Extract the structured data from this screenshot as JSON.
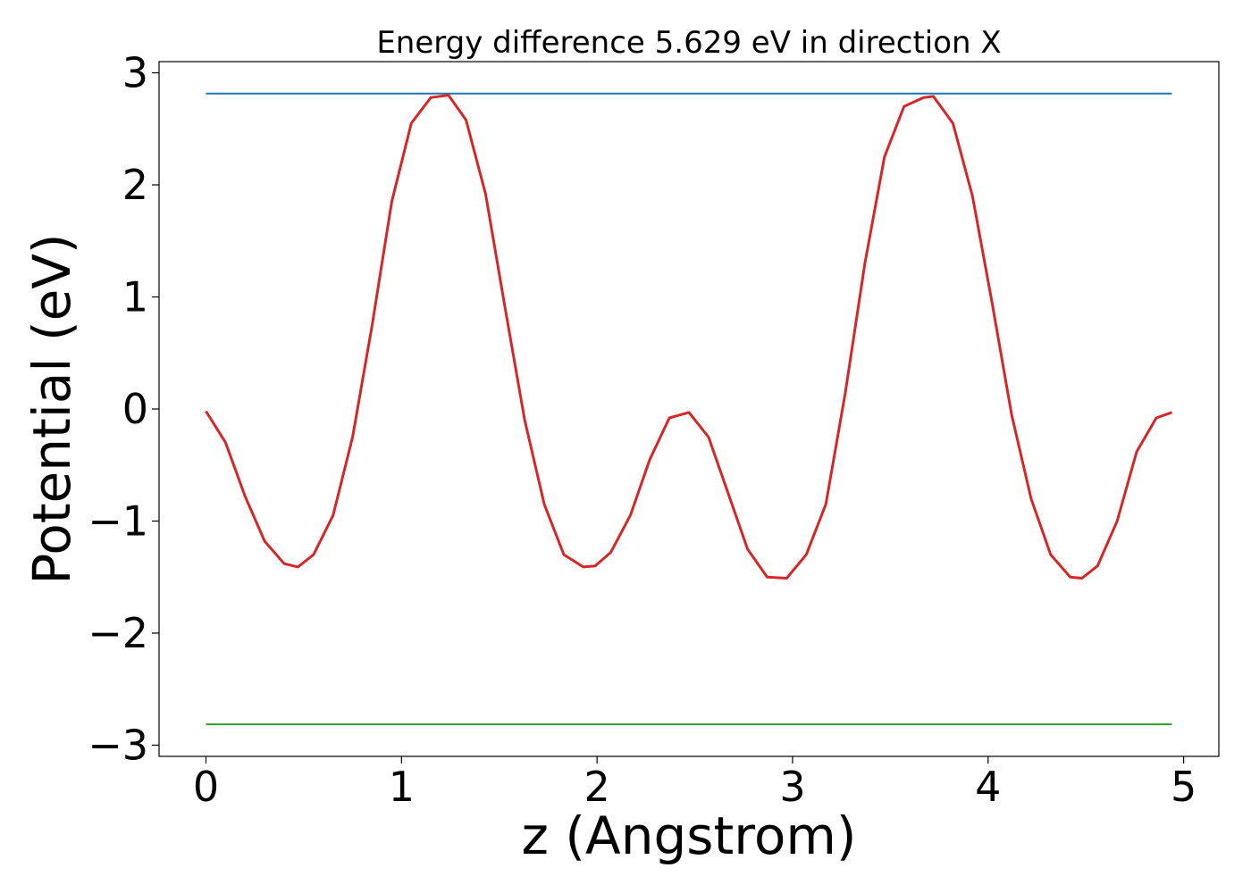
{
  "chart_data": {
    "type": "line",
    "title": "Energy difference 5.629 eV in direction X",
    "xlabel": "z (Angstrom)",
    "ylabel": "Potential (eV)",
    "xlim": [
      -0.24,
      5.18
    ],
    "ylim": [
      -3.1,
      3.1
    ],
    "x_ticks": [
      0,
      1,
      2,
      3,
      4,
      5
    ],
    "x_tick_labels": [
      "0",
      "1",
      "2",
      "3",
      "4",
      "5"
    ],
    "y_ticks": [
      -3,
      -2,
      -1,
      0,
      1,
      2,
      3
    ],
    "y_tick_labels": [
      "−3",
      "−2",
      "−1",
      "0",
      "1",
      "2",
      "3"
    ],
    "grid": false,
    "series": [
      {
        "color": "#1f77b4",
        "x": [
          0,
          4.94
        ],
        "y": [
          2.815,
          2.815
        ]
      },
      {
        "color": "#2ca02c",
        "x": [
          0,
          4.94
        ],
        "y": [
          -2.814,
          -2.814
        ]
      },
      {
        "color": "#d62728",
        "x": [
          0.0,
          0.1,
          0.2,
          0.3,
          0.4,
          0.47,
          0.55,
          0.65,
          0.75,
          0.85,
          0.95,
          1.05,
          1.15,
          1.24,
          1.33,
          1.43,
          1.53,
          1.63,
          1.73,
          1.83,
          1.93,
          1.99,
          2.07,
          2.17,
          2.27,
          2.37,
          2.47,
          2.57,
          2.67,
          2.77,
          2.87,
          2.97,
          3.07,
          3.17,
          3.27,
          3.37,
          3.47,
          3.57,
          3.67,
          3.72,
          3.82,
          3.92,
          4.02,
          4.12,
          4.22,
          4.32,
          4.42,
          4.48,
          4.56,
          4.66,
          4.76,
          4.86,
          4.94
        ],
        "y": [
          -0.02,
          -0.3,
          -0.78,
          -1.18,
          -1.38,
          -1.41,
          -1.3,
          -0.95,
          -0.25,
          0.75,
          1.85,
          2.55,
          2.78,
          2.8,
          2.58,
          1.92,
          0.9,
          -0.1,
          -0.85,
          -1.3,
          -1.41,
          -1.4,
          -1.28,
          -0.95,
          -0.45,
          -0.08,
          -0.03,
          -0.25,
          -0.75,
          -1.25,
          -1.5,
          -1.51,
          -1.3,
          -0.85,
          0.15,
          1.3,
          2.25,
          2.7,
          2.78,
          2.79,
          2.55,
          1.9,
          0.95,
          -0.05,
          -0.8,
          -1.3,
          -1.5,
          -1.51,
          -1.4,
          -1.0,
          -0.38,
          -0.08,
          -0.03
        ]
      }
    ]
  }
}
